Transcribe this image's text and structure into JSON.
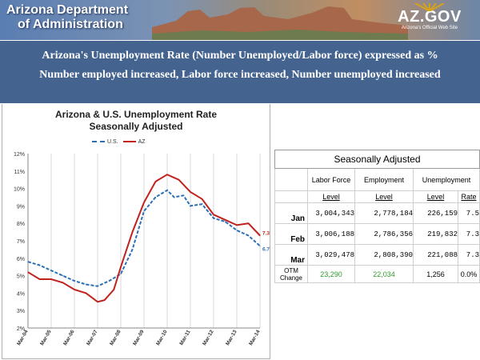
{
  "header": {
    "dept_line1": "Arizona Department",
    "dept_line2": "of Administration",
    "logo_text": "AZ.GOV",
    "logo_sub": "Arizona's Official Web Site"
  },
  "headline": {
    "line1": "Arizona's Unemployment Rate (Number Unemployed/Labor force) expressed as %",
    "line2": "Number employed increased, Labor force increased, Number unemployed increased"
  },
  "chart_data": {
    "type": "line",
    "title": "Arizona & U.S. Unemployment Rate",
    "subtitle": "Seasonally Adjusted",
    "xlabel": "",
    "ylabel": "",
    "ylim": [
      2,
      12
    ],
    "y_ticks": [
      "2%",
      "3%",
      "4%",
      "5%",
      "6%",
      "7%",
      "8%",
      "9%",
      "10%",
      "11%",
      "12%"
    ],
    "x_ticks": [
      "Mar-04",
      "Mar-05",
      "Mar-06",
      "Mar-07",
      "Mar-08",
      "Mar-09",
      "Mar-10",
      "Mar-11",
      "Mar-12",
      "Mar-13",
      "Mar-14"
    ],
    "legend_position": "top",
    "grid": "vertical",
    "series": [
      {
        "name": "U.S.",
        "color": "#2c6fb5",
        "style": "dashed",
        "points": [
          [
            0,
            5.8
          ],
          [
            0.5,
            5.6
          ],
          [
            1,
            5.3
          ],
          [
            1.5,
            5.0
          ],
          [
            2,
            4.7
          ],
          [
            2.5,
            4.5
          ],
          [
            3,
            4.4
          ],
          [
            3.5,
            4.7
          ],
          [
            4,
            5.1
          ],
          [
            4.5,
            6.5
          ],
          [
            5,
            8.7
          ],
          [
            5.5,
            9.5
          ],
          [
            6,
            9.9
          ],
          [
            6.3,
            9.5
          ],
          [
            6.7,
            9.6
          ],
          [
            7,
            9.0
          ],
          [
            7.5,
            9.1
          ],
          [
            8,
            8.3
          ],
          [
            8.5,
            8.1
          ],
          [
            9,
            7.6
          ],
          [
            9.5,
            7.3
          ],
          [
            10,
            6.7
          ]
        ],
        "end_label": "6.7%"
      },
      {
        "name": "AZ",
        "color": "#c0221e",
        "style": "solid",
        "points": [
          [
            0,
            5.2
          ],
          [
            0.5,
            4.8
          ],
          [
            1,
            4.8
          ],
          [
            1.5,
            4.6
          ],
          [
            2,
            4.2
          ],
          [
            2.5,
            4.0
          ],
          [
            3,
            3.5
          ],
          [
            3.3,
            3.6
          ],
          [
            3.7,
            4.2
          ],
          [
            4,
            5.5
          ],
          [
            4.5,
            7.5
          ],
          [
            5,
            9.2
          ],
          [
            5.5,
            10.4
          ],
          [
            6,
            10.8
          ],
          [
            6.5,
            10.5
          ],
          [
            7,
            9.8
          ],
          [
            7.5,
            9.4
          ],
          [
            8,
            8.5
          ],
          [
            8.5,
            8.2
          ],
          [
            9,
            7.9
          ],
          [
            9.5,
            8.0
          ],
          [
            10,
            7.3
          ]
        ],
        "end_label": "7.3%"
      }
    ]
  },
  "table": {
    "caption": "Seasonally Adjusted",
    "col_labor": "Labor Force",
    "col_employment": "Employment",
    "col_unemployment": "Unemployment",
    "lvl1": "Level",
    "lvl2": "Level",
    "lvl3": "Level",
    "rate": "Rate",
    "rows": [
      {
        "month": "Jan",
        "labor": "3,004,343",
        "employment": "2,778,184",
        "unemp": "226,159",
        "rate": "7.5"
      },
      {
        "month": "Feb",
        "labor": "3,006,188",
        "employment": "2,786,356",
        "unemp": "219,832",
        "rate": "7.3"
      },
      {
        "month": "Mar",
        "labor": "3,029,478",
        "employment": "2,808,390",
        "unemp": "221,088",
        "rate": "7.3"
      }
    ],
    "change_label_1": "OTM",
    "change_label_2": "Change",
    "change": {
      "labor": "23,290",
      "employment": "22,034",
      "unemp": "1,256",
      "rate": "0.0%"
    }
  }
}
